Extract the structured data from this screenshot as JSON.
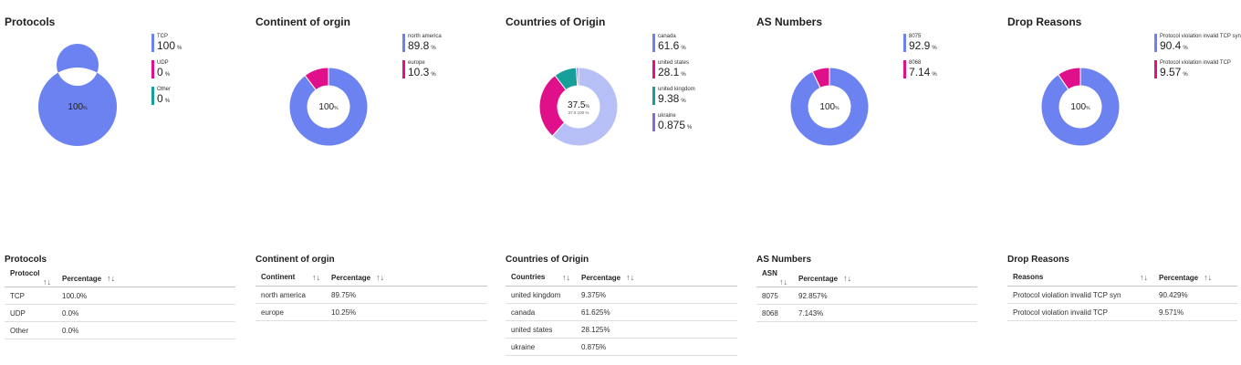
{
  "chart_data": [
    {
      "type": "pie",
      "title": "Protocols",
      "center_label": "100",
      "slices": [
        {
          "label": "TCP",
          "value": 100,
          "color": "#6c82f0"
        },
        {
          "label": "UDP",
          "value": 0,
          "color": "#e0108a"
        },
        {
          "label": "Other",
          "value": 0,
          "color": "#17a09b"
        }
      ],
      "legend": [
        {
          "label": "TCP",
          "value": "100",
          "color": "#6c82f0"
        },
        {
          "label": "UDP",
          "value": "0",
          "color": "#e0108a"
        },
        {
          "label": "Other",
          "value": "0",
          "color": "#17a09b"
        }
      ],
      "unit": "%",
      "legend_position": "right"
    },
    {
      "type": "pie",
      "title": "Continent of orgin",
      "center_label": "100",
      "slices": [
        {
          "label": "north america",
          "value": 89.75,
          "color": "#6c82f0"
        },
        {
          "label": "europe",
          "value": 10.25,
          "color": "#e0108a"
        }
      ],
      "legend": [
        {
          "label": "north america",
          "value": "89.8",
          "color": "#6c82f0"
        },
        {
          "label": "europe",
          "value": "10.3",
          "color": "#e0108a"
        }
      ],
      "unit": "%",
      "legend_position": "right"
    },
    {
      "type": "pie",
      "title": "Countries of Origin",
      "center_label": "37.5",
      "center_sub": "37.5 100 %",
      "slices": [
        {
          "label": "canada",
          "value": 61.625,
          "color": "#b7c0f6"
        },
        {
          "label": "united states",
          "value": 28.125,
          "color": "#e0108a"
        },
        {
          "label": "united kingdom",
          "value": 9.375,
          "color": "#17a09b"
        },
        {
          "label": "ukraine",
          "value": 0.875,
          "color": "#8a6ad0"
        }
      ],
      "legend": [
        {
          "label": "canada",
          "value": "61.6",
          "color": "#6c82f0"
        },
        {
          "label": "united states",
          "value": "28.1",
          "color": "#e0108a"
        },
        {
          "label": "united kingdom",
          "value": "9.38",
          "color": "#17a09b"
        },
        {
          "label": "ukraine",
          "value": "0.875",
          "color": "#8a6ad0"
        }
      ],
      "unit": "%",
      "legend_position": "right"
    },
    {
      "type": "pie",
      "title": "AS Numbers",
      "center_label": "100",
      "slices": [
        {
          "label": "8075",
          "value": 92.857,
          "color": "#6c82f0"
        },
        {
          "label": "8068",
          "value": 7.143,
          "color": "#e0108a"
        }
      ],
      "legend": [
        {
          "label": "8075",
          "value": "92.9",
          "color": "#6c82f0"
        },
        {
          "label": "8068",
          "value": "7.14",
          "color": "#e0108a"
        }
      ],
      "unit": "%",
      "legend_position": "right"
    },
    {
      "type": "pie",
      "title": "Drop Reasons",
      "center_label": "100",
      "slices": [
        {
          "label": "Protocol violation invalid TCP syn",
          "value": 90.429,
          "color": "#6c82f0"
        },
        {
          "label": "Protocol violation invalid TCP",
          "value": 9.571,
          "color": "#e0108a"
        }
      ],
      "legend": [
        {
          "label": "Protocol violation invalid TCP syn",
          "value": "90.4",
          "color": "#6c82f0"
        },
        {
          "label": "Protocol violation invalid TCP",
          "value": "9.57",
          "color": "#e0108a"
        }
      ],
      "unit": "%",
      "legend_position": "right"
    }
  ],
  "tables": [
    {
      "title": "Protocols",
      "headers": [
        "Protocol",
        "Percentage"
      ],
      "rows": [
        [
          "TCP",
          "100.0%"
        ],
        [
          "UDP",
          "0.0%"
        ],
        [
          "Other",
          "0.0%"
        ]
      ]
    },
    {
      "title": "Continent of orgin",
      "headers": [
        "Continent",
        "Percentage"
      ],
      "rows": [
        [
          "north america",
          "89.75%"
        ],
        [
          "europe",
          "10.25%"
        ]
      ]
    },
    {
      "title": "Countries of Origin",
      "headers": [
        "Countries",
        "Percentage"
      ],
      "rows": [
        [
          "united kingdom",
          "9.375%"
        ],
        [
          "canada",
          "61.625%"
        ],
        [
          "united states",
          "28.125%"
        ],
        [
          "ukraine",
          "0.875%"
        ]
      ]
    },
    {
      "title": "AS Numbers",
      "headers": [
        "ASN",
        "Percentage"
      ],
      "rows": [
        [
          "8075",
          "92.857%"
        ],
        [
          "8068",
          "7.143%"
        ]
      ]
    },
    {
      "title": "Drop Reasons",
      "headers": [
        "Reasons",
        "Percentage"
      ],
      "rows": [
        [
          "Protocol violation invalid TCP syn",
          "90.429%"
        ],
        [
          "Protocol violation invalid TCP",
          "9.571%"
        ]
      ]
    }
  ],
  "sort_icon_glyph": "↑↓"
}
